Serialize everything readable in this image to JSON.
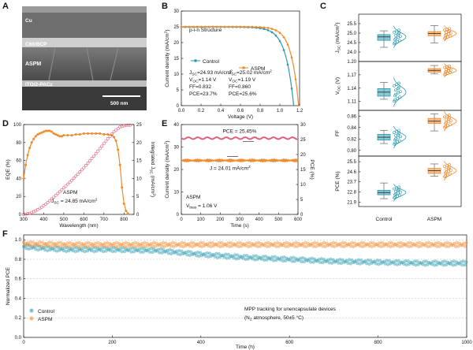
{
  "colors": {
    "control": "#2a9bb0",
    "aspm": "#f08a2c",
    "pce_e": "#e0607a"
  },
  "panel_a": {
    "letter": "A",
    "layer_top": "Cu",
    "layer_c60": "C60/BCP",
    "layer_aspm": "ASPM",
    "layer_ito": "ITO/2-PACz",
    "scalebar": "500 nm"
  },
  "panel_c": {
    "letter": "C",
    "x_labels": [
      "Control",
      "ASPM"
    ]
  },
  "chart_data": [
    {
      "id": "B",
      "type": "line",
      "title": "p-i-n Structure",
      "xlabel": "Voltage (V)",
      "ylabel": "Current density (mA/cm2)",
      "xlim": [
        0.0,
        1.2
      ],
      "ylim": [
        0,
        30
      ],
      "xticks": [
        "0.0",
        "0.2",
        "0.4",
        "0.6",
        "0.8",
        "1.0",
        "1.2"
      ],
      "yticks": [
        "0",
        "5",
        "10",
        "15",
        "20",
        "25",
        "30"
      ],
      "legend": [
        "Control",
        "ASPM"
      ],
      "series": [
        {
          "name": "Control",
          "voc": 1.14,
          "jsc": 24.93,
          "ff": 0.832,
          "label_jsc": "JSC=24.93 mA/cm2",
          "label_voc": "VOC=1.14 V",
          "label_ff": "FF=0.832",
          "label_pce": "PCE=23.7%"
        },
        {
          "name": "ASPM",
          "voc": 1.19,
          "jsc": 25.02,
          "ff": 0.86,
          "label_jsc": "JSC=25.02 mA/cm2",
          "label_voc": "VOC=1.19 V",
          "label_ff": "FF=0.860",
          "label_pce": "PCE=25.6%"
        }
      ]
    },
    {
      "id": "D",
      "type": "line",
      "xlabel": "Wavelength (nm)",
      "ylabel": "EQE (%)",
      "y2label": "Integrated JSC (mA/cm2)",
      "xlim": [
        300,
        850
      ],
      "ylim": [
        0,
        100
      ],
      "y2lim": [
        0,
        25
      ],
      "xticks": [
        "300",
        "400",
        "500",
        "600",
        "700",
        "800"
      ],
      "yticks": [
        "0",
        "20",
        "40",
        "60",
        "80",
        "100"
      ],
      "y2ticks": [
        "0",
        "5",
        "10",
        "15",
        "20",
        "25"
      ],
      "annotation_name": "ASPM",
      "annotation_jsc": "JSC = 24.85 mA/cm2",
      "eqe": {
        "x": [
          300,
          310,
          320,
          330,
          340,
          350,
          360,
          370,
          380,
          390,
          400,
          410,
          420,
          430,
          440,
          450,
          460,
          470,
          480,
          490,
          500,
          520,
          540,
          560,
          580,
          600,
          620,
          640,
          660,
          680,
          700,
          720,
          740,
          750,
          760,
          770,
          780,
          790,
          800,
          810,
          820
        ],
        "y": [
          40,
          55,
          66,
          74,
          80,
          84,
          87,
          89,
          90,
          91,
          92,
          93,
          93,
          93,
          92,
          90,
          89,
          88,
          87,
          87,
          88,
          88,
          88,
          89,
          89,
          90,
          90,
          90,
          90,
          90,
          89,
          89,
          88,
          86,
          82,
          72,
          55,
          30,
          12,
          4,
          1
        ]
      },
      "integrated_jsc": {
        "x": [
          300,
          330,
          360,
          390,
          420,
          450,
          480,
          510,
          540,
          570,
          600,
          630,
          660,
          690,
          720,
          750,
          780,
          810,
          840
        ],
        "y": [
          0,
          0.3,
          1.0,
          2.0,
          3.3,
          4.8,
          6.3,
          7.9,
          9.5,
          11.2,
          13.0,
          14.9,
          16.9,
          19.0,
          21.1,
          23.0,
          24.3,
          24.8,
          24.85
        ]
      }
    },
    {
      "id": "E",
      "type": "line",
      "xlabel": "Time (s)",
      "ylabel": "Current density (mA/cm2)",
      "y2label": "PCE (%)",
      "xlim": [
        0,
        600
      ],
      "ylim": [
        0,
        40
      ],
      "y2lim": [
        0,
        30
      ],
      "xticks": [
        "0",
        "100",
        "200",
        "300",
        "400",
        "500",
        "600"
      ],
      "yticks": [
        "0",
        "10",
        "20",
        "30",
        "40"
      ],
      "y2ticks": [
        "0",
        "5",
        "10",
        "15",
        "20",
        "25",
        "30"
      ],
      "pce_label": "PCE = 25.45%",
      "j_label": "J = 24.01 mA/cm2",
      "device": "ASPM",
      "vbias": "Vbias = 1.06 V",
      "series": [
        {
          "name": "PCE",
          "axis": "right",
          "value": 25.45
        },
        {
          "name": "J",
          "axis": "left",
          "value": 24.01
        }
      ]
    },
    {
      "id": "C",
      "type": "box",
      "categories": [
        "Control",
        "ASPM"
      ],
      "subplots": [
        {
          "ylabel": "JSC (mA/cm2)",
          "ylim": [
            23.5,
            26.0
          ],
          "yticks": [
            "24.0",
            "24.5",
            "25.0",
            "25.5"
          ],
          "control": {
            "min": 24.25,
            "q1": 24.62,
            "median": 24.8,
            "q3": 24.92,
            "max": 25.12
          },
          "aspm": {
            "min": 24.48,
            "q1": 24.86,
            "median": 24.98,
            "q3": 25.08,
            "max": 25.4
          }
        },
        {
          "ylabel": "VOC (V)",
          "ylim": [
            1.09,
            1.2
          ],
          "yticks": [
            "1.11",
            "1.14",
            "1.17",
            "1.20"
          ],
          "control": {
            "min": 1.115,
            "q1": 1.122,
            "median": 1.131,
            "q3": 1.139,
            "max": 1.153
          },
          "aspm": {
            "min": 1.172,
            "q1": 1.176,
            "median": 1.18,
            "q3": 1.184,
            "max": 1.191
          }
        },
        {
          "ylabel": "FF",
          "ylim": [
            0.79,
            0.87
          ],
          "yticks": [
            "0.80",
            "0.82",
            "0.84",
            "0.86"
          ],
          "control": {
            "min": 0.812,
            "q1": 0.818,
            "median": 0.823,
            "q3": 0.828,
            "max": 0.835
          },
          "aspm": {
            "min": 0.834,
            "q1": 0.847,
            "median": 0.851,
            "q3": 0.856,
            "max": 0.864
          }
        },
        {
          "ylabel": "PCE (%)",
          "ylim": [
            21.5,
            26.0
          ],
          "yticks": [
            "21.9",
            "22.8",
            "23.7",
            "24.6",
            "25.5"
          ],
          "control": {
            "min": 22.2,
            "q1": 22.55,
            "median": 22.75,
            "q3": 22.95,
            "max": 23.6
          },
          "aspm": {
            "min": 24.2,
            "q1": 24.45,
            "median": 24.7,
            "q3": 24.9,
            "max": 25.3
          }
        }
      ]
    },
    {
      "id": "F",
      "type": "scatter",
      "xlabel": "Time (h)",
      "ylabel": "Normalized PCE",
      "xlim": [
        0,
        1000
      ],
      "ylim": [
        0.0,
        1.05
      ],
      "xticks": [
        "0",
        "200",
        "400",
        "600",
        "800",
        "1000"
      ],
      "yticks": [
        "0.0",
        "0.2",
        "0.4",
        "0.6",
        "0.8",
        "1.0"
      ],
      "legend": [
        "Control",
        "ASPM"
      ],
      "annotation_1": "MPP tracking for unencapsulate devices",
      "annotation_2": "(N2 atmosphere, 50±5 °C)",
      "series": [
        {
          "name": "Control",
          "x": [
            0,
            50,
            100,
            200,
            300,
            400,
            500,
            600,
            700,
            800,
            900,
            1000
          ],
          "y": [
            0.93,
            0.91,
            0.9,
            0.9,
            0.89,
            0.85,
            0.82,
            0.8,
            0.78,
            0.77,
            0.76,
            0.76
          ]
        },
        {
          "name": "ASPM",
          "x": [
            0,
            100,
            200,
            300,
            400,
            500,
            600,
            700,
            800,
            900,
            1000
          ],
          "y": [
            0.96,
            0.95,
            0.95,
            0.95,
            0.95,
            0.95,
            0.95,
            0.95,
            0.95,
            0.95,
            0.95
          ]
        }
      ]
    }
  ]
}
